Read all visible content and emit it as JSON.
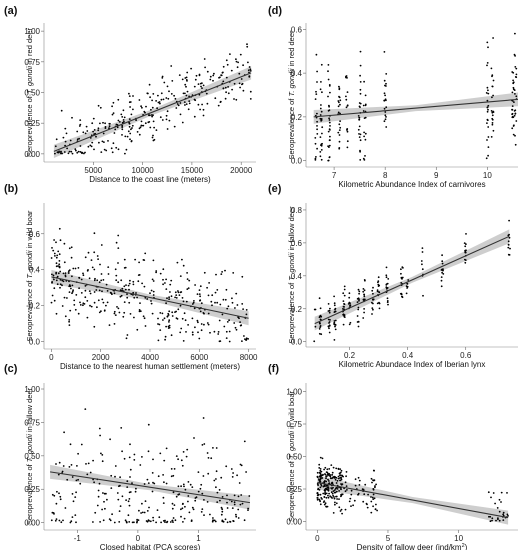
{
  "chart_data": [
    {
      "panel_label": "(a)",
      "type": "scatter",
      "xlabel": "Distance to the coast line (meters)",
      "ylabel_prefix": "Seroprevalence of ",
      "ylabel_italic": "T. gondii",
      "ylabel_suffix": " in red deer",
      "xlim": [
        0,
        21500
      ],
      "ylim": [
        -0.05,
        1.05
      ],
      "xticks": [
        5000,
        10000,
        15000,
        20000
      ],
      "yticks": [
        0.0,
        0.25,
        0.5,
        0.75,
        1.0
      ],
      "ytick_labels": [
        "0.00",
        "0.25",
        "0.50",
        "0.75",
        "1.00"
      ],
      "trend": {
        "x": [
          1000,
          21000
        ],
        "y": [
          0.02,
          0.66
        ]
      },
      "points": {
        "x_range": [
          1000,
          21000
        ],
        "n": 330,
        "mode": "linear",
        "slope": 3.2e-05,
        "intercept": -0.01,
        "noise": 0.18,
        "ymin": 0,
        "ymax": 0.92,
        "seed": 11
      }
    },
    {
      "panel_label": "(b)",
      "type": "scatter",
      "xlabel": "Distance to the nearest human settlement (meters)",
      "ylabel_prefix": "Seroprevalence of ",
      "ylabel_italic": "T. gondii",
      "ylabel_suffix": " in wild boar",
      "xlim": [
        -300,
        8300
      ],
      "ylim": [
        -0.03,
        0.76
      ],
      "xticks": [
        0,
        2000,
        4000,
        6000,
        8000
      ],
      "yticks": [
        0.0,
        0.2,
        0.4,
        0.6
      ],
      "ytick_labels": [
        "0.0",
        "0.2",
        "0.4",
        "0.6"
      ],
      "trend": {
        "x": [
          0,
          8000
        ],
        "y": [
          0.36,
          0.13
        ]
      },
      "points": {
        "x_range": [
          0,
          8000
        ],
        "n": 420,
        "mode": "decay",
        "slope": -2.85e-05,
        "intercept": 0.36,
        "noise": 0.17,
        "ymin": 0,
        "ymax": 0.72,
        "seed": 23
      }
    },
    {
      "panel_label": "(c)",
      "type": "scatter",
      "xlabel": "Closed habitat (PCA scores)",
      "ylabel_prefix": "Seroprevalence of ",
      "ylabel_italic": "T. gondii",
      "ylabel_suffix": " in fallow deer",
      "xlim": [
        -1.55,
        1.95
      ],
      "ylim": [
        -0.04,
        1.03
      ],
      "xticks": [
        -1,
        0,
        1
      ],
      "yticks": [
        0.0,
        0.25,
        0.5,
        0.75,
        1.0
      ],
      "ytick_labels": [
        "0.00",
        "0.25",
        "0.50",
        "0.75",
        "1.00"
      ],
      "trend": {
        "x": [
          -1.45,
          1.85
        ],
        "y": [
          0.38,
          0.15
        ]
      },
      "points": {
        "x_range": [
          -1.45,
          1.85
        ],
        "n": 300,
        "mode": "sparse",
        "slope": -0.07,
        "intercept": 0.27,
        "noise": 0.25,
        "ymin": 0,
        "ymax": 0.97,
        "seed": 37
      }
    },
    {
      "panel_label": "(d)",
      "type": "scatter",
      "xlabel": "Kilometric Abundance Index of carnivores",
      "ylabel_prefix": "Seroprevalence of ",
      "ylabel_italic": "T. gondii",
      "ylabel_suffix": " in red deer",
      "xlim": [
        6.45,
        10.6
      ],
      "ylim": [
        -0.02,
        0.62
      ],
      "xticks": [
        7,
        8,
        9,
        10
      ],
      "yticks": [
        0.0,
        0.2,
        0.4,
        0.6
      ],
      "ytick_labels": [
        "0.0",
        "0.2",
        "0.4",
        "0.6"
      ],
      "trend": {
        "x": [
          6.6,
          10.6
        ],
        "y": [
          0.2,
          0.28
        ]
      },
      "points": {
        "x_range": [
          6.6,
          10.6
        ],
        "n": 260,
        "mode": "columns",
        "columns": [
          6.65,
          6.75,
          6.9,
          7.1,
          7.25,
          7.5,
          7.6,
          8.0,
          10.0,
          10.1,
          10.5,
          10.55
        ],
        "slope": 0.02,
        "intercept": 0.07,
        "noise": 0.17,
        "ymin": 0,
        "ymax": 0.6,
        "seed": 41
      }
    },
    {
      "panel_label": "(e)",
      "type": "scatter",
      "xlabel": "Kilometric Abundace Index of Iberian lynx",
      "ylabel_prefix": "Seroprevalence of ",
      "ylabel_italic": "T. gondii",
      "ylabel_suffix": " in fallow deer",
      "xlim": [
        0.05,
        0.78
      ],
      "ylim": [
        -0.02,
        0.83
      ],
      "xticks": [
        0.2,
        0.4,
        0.6
      ],
      "yticks": [
        0.0,
        0.2,
        0.4,
        0.6,
        0.8
      ],
      "ytick_labels": [
        "0.0",
        "0.2",
        "0.4",
        "0.6",
        "0.8"
      ],
      "trend": {
        "x": [
          0.08,
          0.75
        ],
        "y": [
          0.11,
          0.64
        ]
      },
      "points": {
        "x_range": [
          0.08,
          0.75
        ],
        "n": 230,
        "mode": "columns",
        "columns": [
          0.08,
          0.1,
          0.13,
          0.15,
          0.18,
          0.2,
          0.23,
          0.25,
          0.28,
          0.3,
          0.33,
          0.38,
          0.4,
          0.45,
          0.52,
          0.6,
          0.75
        ],
        "slope": 0.79,
        "intercept": 0.05,
        "noise": 0.1,
        "ymin": 0,
        "ymax": 0.76,
        "seed": 53
      }
    },
    {
      "panel_label": "(f)",
      "type": "scatter",
      "xlabel_prefix": "Density of fallow deer (ind/km",
      "xlabel_sup": "2",
      "xlabel_suffix": ")",
      "ylabel_prefix": "Seroprevalence of ",
      "ylabel_italic": "T. gondii",
      "ylabel_suffix": " in wild boar",
      "xlim": [
        -0.8,
        14.2
      ],
      "ylim": [
        -0.05,
        1.05
      ],
      "xticks": [
        0,
        5,
        10
      ],
      "yticks": [
        0.0,
        0.25,
        0.5,
        0.75,
        1.0
      ],
      "ytick_labels": [
        "0.00",
        "0.25",
        "0.50",
        "0.75",
        "1.00"
      ],
      "trend": {
        "x": [
          0,
          13.5
        ],
        "y": [
          0.3,
          0.03
        ]
      },
      "points": {
        "x_range": [
          0,
          13.5
        ],
        "n": 300,
        "mode": "cluster",
        "slope": -0.02,
        "intercept": 0.3,
        "noise": 0.13,
        "ymin": 0,
        "ymax": 0.73,
        "seed": 67
      }
    }
  ]
}
